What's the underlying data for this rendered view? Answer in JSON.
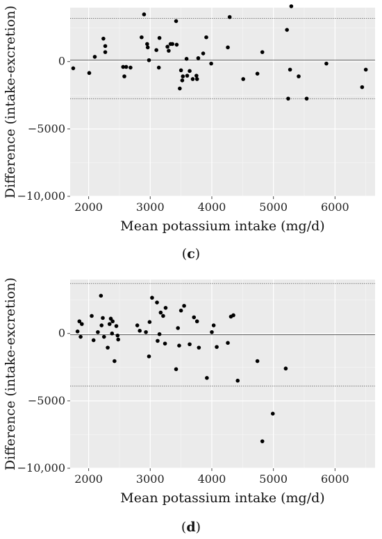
{
  "chart_data": [
    {
      "type": "scatter",
      "panel": "(c)",
      "xlabel": "Mean potassium intake (mg/d)",
      "ylabel": "Difference (intake-excretion)",
      "xlim": [
        1700,
        6650
      ],
      "ylim": [
        -10000,
        4000
      ],
      "xticks": [
        2000,
        3000,
        4000,
        5000,
        6000
      ],
      "yticks": [
        0,
        -5000,
        -10000
      ],
      "ytick_labels": [
        "0",
        "−5000",
        "−10,000"
      ],
      "grid": true,
      "reference_lines": {
        "mean": 100,
        "upper": 3200,
        "lower": -2750
      },
      "points": [
        {
          "x": 1750,
          "y": -500
        },
        {
          "x": 2010,
          "y": -850
        },
        {
          "x": 2100,
          "y": 350
        },
        {
          "x": 2240,
          "y": 1700
        },
        {
          "x": 2270,
          "y": 1150
        },
        {
          "x": 2270,
          "y": 700
        },
        {
          "x": 2560,
          "y": -400
        },
        {
          "x": 2580,
          "y": -1100
        },
        {
          "x": 2610,
          "y": -400
        },
        {
          "x": 2680,
          "y": -450
        },
        {
          "x": 2860,
          "y": 1800
        },
        {
          "x": 2900,
          "y": 3500
        },
        {
          "x": 2950,
          "y": 1300
        },
        {
          "x": 2960,
          "y": 1050
        },
        {
          "x": 2980,
          "y": 100
        },
        {
          "x": 3100,
          "y": 850
        },
        {
          "x": 3140,
          "y": -450
        },
        {
          "x": 3150,
          "y": 1750
        },
        {
          "x": 3280,
          "y": 1100
        },
        {
          "x": 3300,
          "y": 800
        },
        {
          "x": 3330,
          "y": 1300
        },
        {
          "x": 3360,
          "y": 1300
        },
        {
          "x": 3420,
          "y": 3000
        },
        {
          "x": 3430,
          "y": 1250
        },
        {
          "x": 3480,
          "y": -2000
        },
        {
          "x": 3500,
          "y": -650
        },
        {
          "x": 3520,
          "y": -1400
        },
        {
          "x": 3530,
          "y": -1100
        },
        {
          "x": 3590,
          "y": 200
        },
        {
          "x": 3600,
          "y": -1050
        },
        {
          "x": 3640,
          "y": -700
        },
        {
          "x": 3690,
          "y": -1300
        },
        {
          "x": 3750,
          "y": -1050
        },
        {
          "x": 3760,
          "y": -1300
        },
        {
          "x": 3780,
          "y": 250
        },
        {
          "x": 3860,
          "y": 600
        },
        {
          "x": 3910,
          "y": 1800
        },
        {
          "x": 3990,
          "y": -150
        },
        {
          "x": 4260,
          "y": 1050
        },
        {
          "x": 4290,
          "y": 3300
        },
        {
          "x": 4510,
          "y": -1300
        },
        {
          "x": 4740,
          "y": -900
        },
        {
          "x": 4820,
          "y": 700
        },
        {
          "x": 5220,
          "y": 2350
        },
        {
          "x": 5240,
          "y": -2750
        },
        {
          "x": 5270,
          "y": -600
        },
        {
          "x": 5290,
          "y": 4100
        },
        {
          "x": 5410,
          "y": -1100
        },
        {
          "x": 5540,
          "y": -2750
        },
        {
          "x": 5860,
          "y": -150
        },
        {
          "x": 6440,
          "y": -1900
        },
        {
          "x": 6500,
          "y": -600
        }
      ]
    },
    {
      "type": "scatter",
      "panel": "(d)",
      "xlabel": "Mean potassium intake (mg/d)",
      "ylabel": "Difference (intake-excretion)",
      "xlim": [
        1700,
        6650
      ],
      "ylim": [
        -10000,
        4000
      ],
      "xticks": [
        2000,
        3000,
        4000,
        5000,
        6000
      ],
      "yticks": [
        0,
        -5000,
        -10000
      ],
      "ytick_labels": [
        "0",
        "−5000",
        "−10,000"
      ],
      "grid": true,
      "reference_lines": {
        "mean": -100,
        "upper": 3700,
        "lower": -3900
      },
      "points": [
        {
          "x": 1820,
          "y": 150
        },
        {
          "x": 1850,
          "y": 900
        },
        {
          "x": 1870,
          "y": -250
        },
        {
          "x": 1890,
          "y": 700
        },
        {
          "x": 2050,
          "y": 1300
        },
        {
          "x": 2080,
          "y": -500
        },
        {
          "x": 2150,
          "y": 100
        },
        {
          "x": 2200,
          "y": 2800
        },
        {
          "x": 2210,
          "y": 600
        },
        {
          "x": 2230,
          "y": 1150
        },
        {
          "x": 2250,
          "y": -250
        },
        {
          "x": 2310,
          "y": -1050
        },
        {
          "x": 2340,
          "y": 700
        },
        {
          "x": 2360,
          "y": 1100
        },
        {
          "x": 2380,
          "y": 0
        },
        {
          "x": 2390,
          "y": 900
        },
        {
          "x": 2420,
          "y": -2050
        },
        {
          "x": 2450,
          "y": 550
        },
        {
          "x": 2470,
          "y": -150
        },
        {
          "x": 2480,
          "y": -450
        },
        {
          "x": 2790,
          "y": 600
        },
        {
          "x": 2830,
          "y": 200
        },
        {
          "x": 2930,
          "y": 100
        },
        {
          "x": 2980,
          "y": -1700
        },
        {
          "x": 2990,
          "y": 850
        },
        {
          "x": 3030,
          "y": 2650
        },
        {
          "x": 3110,
          "y": 2300
        },
        {
          "x": 3120,
          "y": -550
        },
        {
          "x": 3150,
          "y": -50
        },
        {
          "x": 3170,
          "y": 1550
        },
        {
          "x": 3210,
          "y": 1300
        },
        {
          "x": 3240,
          "y": -750
        },
        {
          "x": 3250,
          "y": 1900
        },
        {
          "x": 3420,
          "y": -2650
        },
        {
          "x": 3450,
          "y": 400
        },
        {
          "x": 3470,
          "y": -900
        },
        {
          "x": 3500,
          "y": 1700
        },
        {
          "x": 3550,
          "y": 2050
        },
        {
          "x": 3640,
          "y": -800
        },
        {
          "x": 3710,
          "y": 1200
        },
        {
          "x": 3760,
          "y": 900
        },
        {
          "x": 3790,
          "y": -1050
        },
        {
          "x": 3920,
          "y": -3300
        },
        {
          "x": 4000,
          "y": 100
        },
        {
          "x": 4030,
          "y": 600
        },
        {
          "x": 4080,
          "y": -1000
        },
        {
          "x": 4260,
          "y": -700
        },
        {
          "x": 4310,
          "y": 1250
        },
        {
          "x": 4350,
          "y": 1350
        },
        {
          "x": 4420,
          "y": -3500
        },
        {
          "x": 4740,
          "y": -2050
        },
        {
          "x": 4820,
          "y": -8000
        },
        {
          "x": 4990,
          "y": -5950
        },
        {
          "x": 5200,
          "y": -2600
        }
      ]
    }
  ]
}
